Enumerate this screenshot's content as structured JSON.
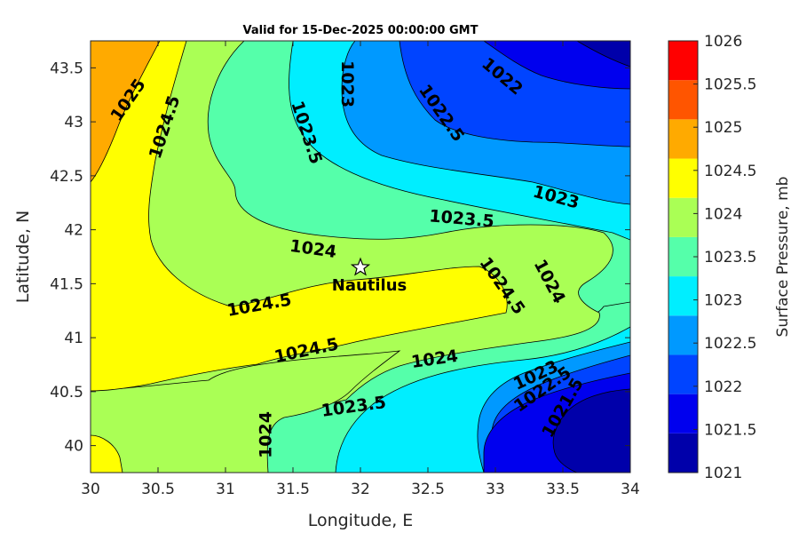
{
  "chart_data": {
    "type": "contour",
    "title": "Valid for 15-Dec-2025 00:00:00 GMT",
    "xlabel": "Longitude, E",
    "ylabel": "Latitude, N",
    "xlim": [
      30,
      34
    ],
    "ylim": [
      39.75,
      43.75
    ],
    "x_ticks": [
      "30",
      "30.5",
      "31",
      "31.5",
      "32",
      "32.5",
      "33",
      "33.5",
      "34"
    ],
    "y_ticks": [
      "40",
      "40.5",
      "41",
      "41.5",
      "42",
      "42.5",
      "43",
      "43.5"
    ],
    "colorbar": {
      "label": "Surface Pressure, mb",
      "ticks": [
        "1021",
        "1021.5",
        "1022",
        "1022.5",
        "1023",
        "1023.5",
        "1024",
        "1024.5",
        "1025",
        "1025.5",
        "1026"
      ],
      "colors": [
        "#0000aa",
        "#0000ee",
        "#0044ff",
        "#0099ff",
        "#00eeff",
        "#55ffaa",
        "#aaff55",
        "#ffff00",
        "#ffaa00",
        "#ff5500",
        "#ff0000"
      ]
    },
    "contour_labels": [
      {
        "text": "1025",
        "lon": 30.28,
        "lat": 43.2
      },
      {
        "text": "1024.5",
        "lon": 30.55,
        "lat": 42.95
      },
      {
        "text": "1023.5",
        "lon": 31.6,
        "lat": 42.9
      },
      {
        "text": "1023",
        "lon": 31.9,
        "lat": 43.35
      },
      {
        "text": "1022.5",
        "lon": 32.6,
        "lat": 43.08
      },
      {
        "text": "1022",
        "lon": 33.05,
        "lat": 43.42
      },
      {
        "text": "1023",
        "lon": 33.45,
        "lat": 42.3
      },
      {
        "text": "1023.5",
        "lon": 32.75,
        "lat": 42.1
      },
      {
        "text": "1024",
        "lon": 31.65,
        "lat": 41.82
      },
      {
        "text": "1024",
        "lon": 33.4,
        "lat": 41.52
      },
      {
        "text": "1024.5",
        "lon": 33.05,
        "lat": 41.48
      },
      {
        "text": "1024.5",
        "lon": 31.25,
        "lat": 41.3
      },
      {
        "text": "1024.5",
        "lon": 31.6,
        "lat": 40.88
      },
      {
        "text": "1024",
        "lon": 32.55,
        "lat": 40.8
      },
      {
        "text": "1023.5",
        "lon": 31.95,
        "lat": 40.36
      },
      {
        "text": "1024",
        "lon": 31.3,
        "lat": 40.1
      },
      {
        "text": "1023",
        "lon": 33.3,
        "lat": 40.65
      },
      {
        "text": "1022.5",
        "lon": 33.35,
        "lat": 40.52
      },
      {
        "text": "1021.5",
        "lon": 33.5,
        "lat": 40.35
      }
    ],
    "marker": {
      "label": "Nautilus",
      "lon": 32.0,
      "lat": 41.65
    }
  }
}
